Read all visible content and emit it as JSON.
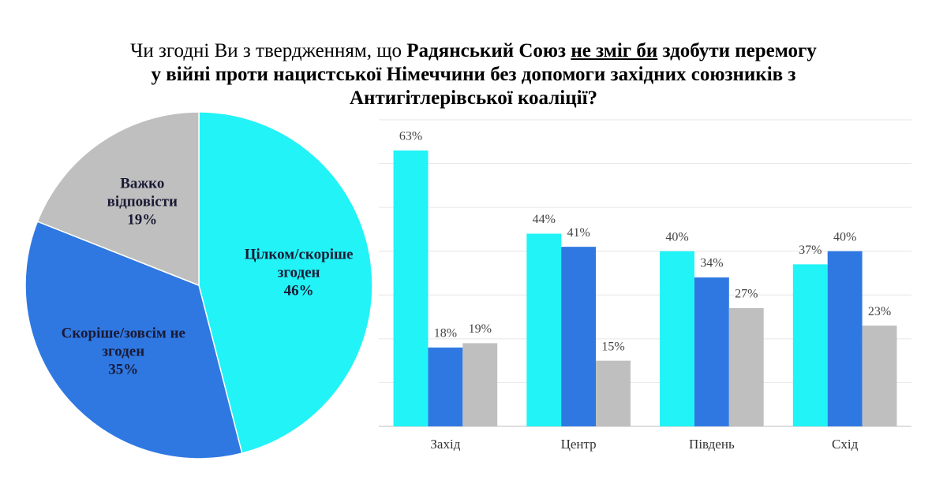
{
  "title": [
    "Чи згодні Ви з твердженням, що",
    "Радянський Союз",
    "не зміг би",
    "здобути перемогу",
    "у війні проти нацистської Німеччини без допомоги західних союзників з",
    "Антигітлерівської коаліції?"
  ],
  "chart_data": [
    {
      "type": "pie",
      "categories": [
        "Цілком/скоріше згоден",
        "Скоріше/зовсім не згоден",
        "Важко відповісти"
      ],
      "values": [
        46,
        35,
        19
      ],
      "value_labels": [
        "46%",
        "35%",
        "19%"
      ],
      "colors": [
        "#22f3f6",
        "#2f78e2",
        "#bfbfbf"
      ]
    },
    {
      "type": "bar",
      "categories": [
        "Захід",
        "Центр",
        "Південь",
        "Схід"
      ],
      "series": [
        {
          "color": "#22f3f6",
          "values": [
            63,
            44,
            40,
            37
          ],
          "value_labels": [
            "63%",
            "44%",
            "40%",
            "37%"
          ]
        },
        {
          "color": "#2f78e2",
          "values": [
            18,
            41,
            34,
            40
          ],
          "value_labels": [
            "18%",
            "41%",
            "34%",
            "40%"
          ]
        },
        {
          "color": "#bfbfbf",
          "values": [
            19,
            15,
            27,
            23
          ],
          "value_labels": [
            "19%",
            "15%",
            "27%",
            "23%"
          ]
        }
      ],
      "ylim": [
        0,
        70
      ],
      "yticks": [
        0,
        10,
        20,
        30,
        40,
        50,
        60,
        70
      ],
      "grid": true
    }
  ]
}
